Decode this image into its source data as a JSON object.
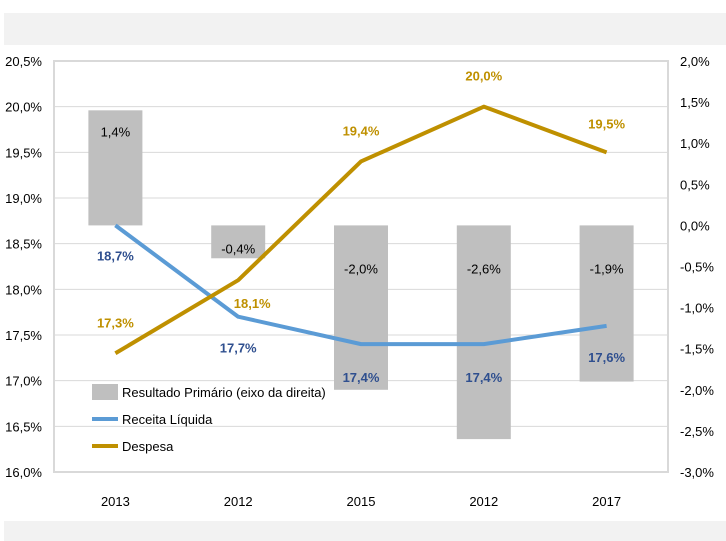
{
  "chart_data": {
    "type": "bar+line",
    "categories": [
      "2013",
      "2012",
      "2015",
      "2012",
      "2017"
    ],
    "left_axis": {
      "ylim": [
        16.0,
        20.5
      ],
      "step": 0.5,
      "ticks": [
        "16,0%",
        "16,5%",
        "17,0%",
        "17,5%",
        "18,0%",
        "18,5%",
        "19,0%",
        "19,5%",
        "20,0%",
        "20,5%"
      ]
    },
    "right_axis": {
      "ylim": [
        -3.0,
        2.0
      ],
      "step": 0.5,
      "ticks": [
        "-3,0%",
        "-2,5%",
        "-2,0%",
        "-1,5%",
        "-1,0%",
        "-0,5%",
        "0,0%",
        "0,5%",
        "1,0%",
        "1,5%",
        "2,0%"
      ]
    },
    "grid": true,
    "legend_position": "bottom-left inside",
    "series": [
      {
        "name": "Resultado Primário (eixo da direita)",
        "type": "bar",
        "axis": "right",
        "color": "#bfbfbf",
        "values": [
          1.4,
          -0.4,
          -2.0,
          -2.6,
          -1.9
        ],
        "labels": [
          "1,4%",
          "-0,4%",
          "-2,0%",
          "-2,6%",
          "-1,9%"
        ],
        "label_color": "#000000"
      },
      {
        "name": "Receita Líquida",
        "type": "line",
        "axis": "left",
        "color": "#5b9bd5",
        "values": [
          18.7,
          17.7,
          17.4,
          17.4,
          17.6
        ],
        "labels": [
          "18,7%",
          "17,7%",
          "17,4%",
          "17,4%",
          "17,6%"
        ],
        "label_color": "#2f4f8f"
      },
      {
        "name": "Despesa",
        "type": "line",
        "axis": "left",
        "color": "#bf9000",
        "values": [
          17.3,
          18.1,
          19.4,
          20.0,
          19.5
        ],
        "labels": [
          "17,3%",
          "18,1%",
          "19,4%",
          "20,0%",
          "19,5%"
        ],
        "label_color": "#bf9000"
      }
    ]
  }
}
